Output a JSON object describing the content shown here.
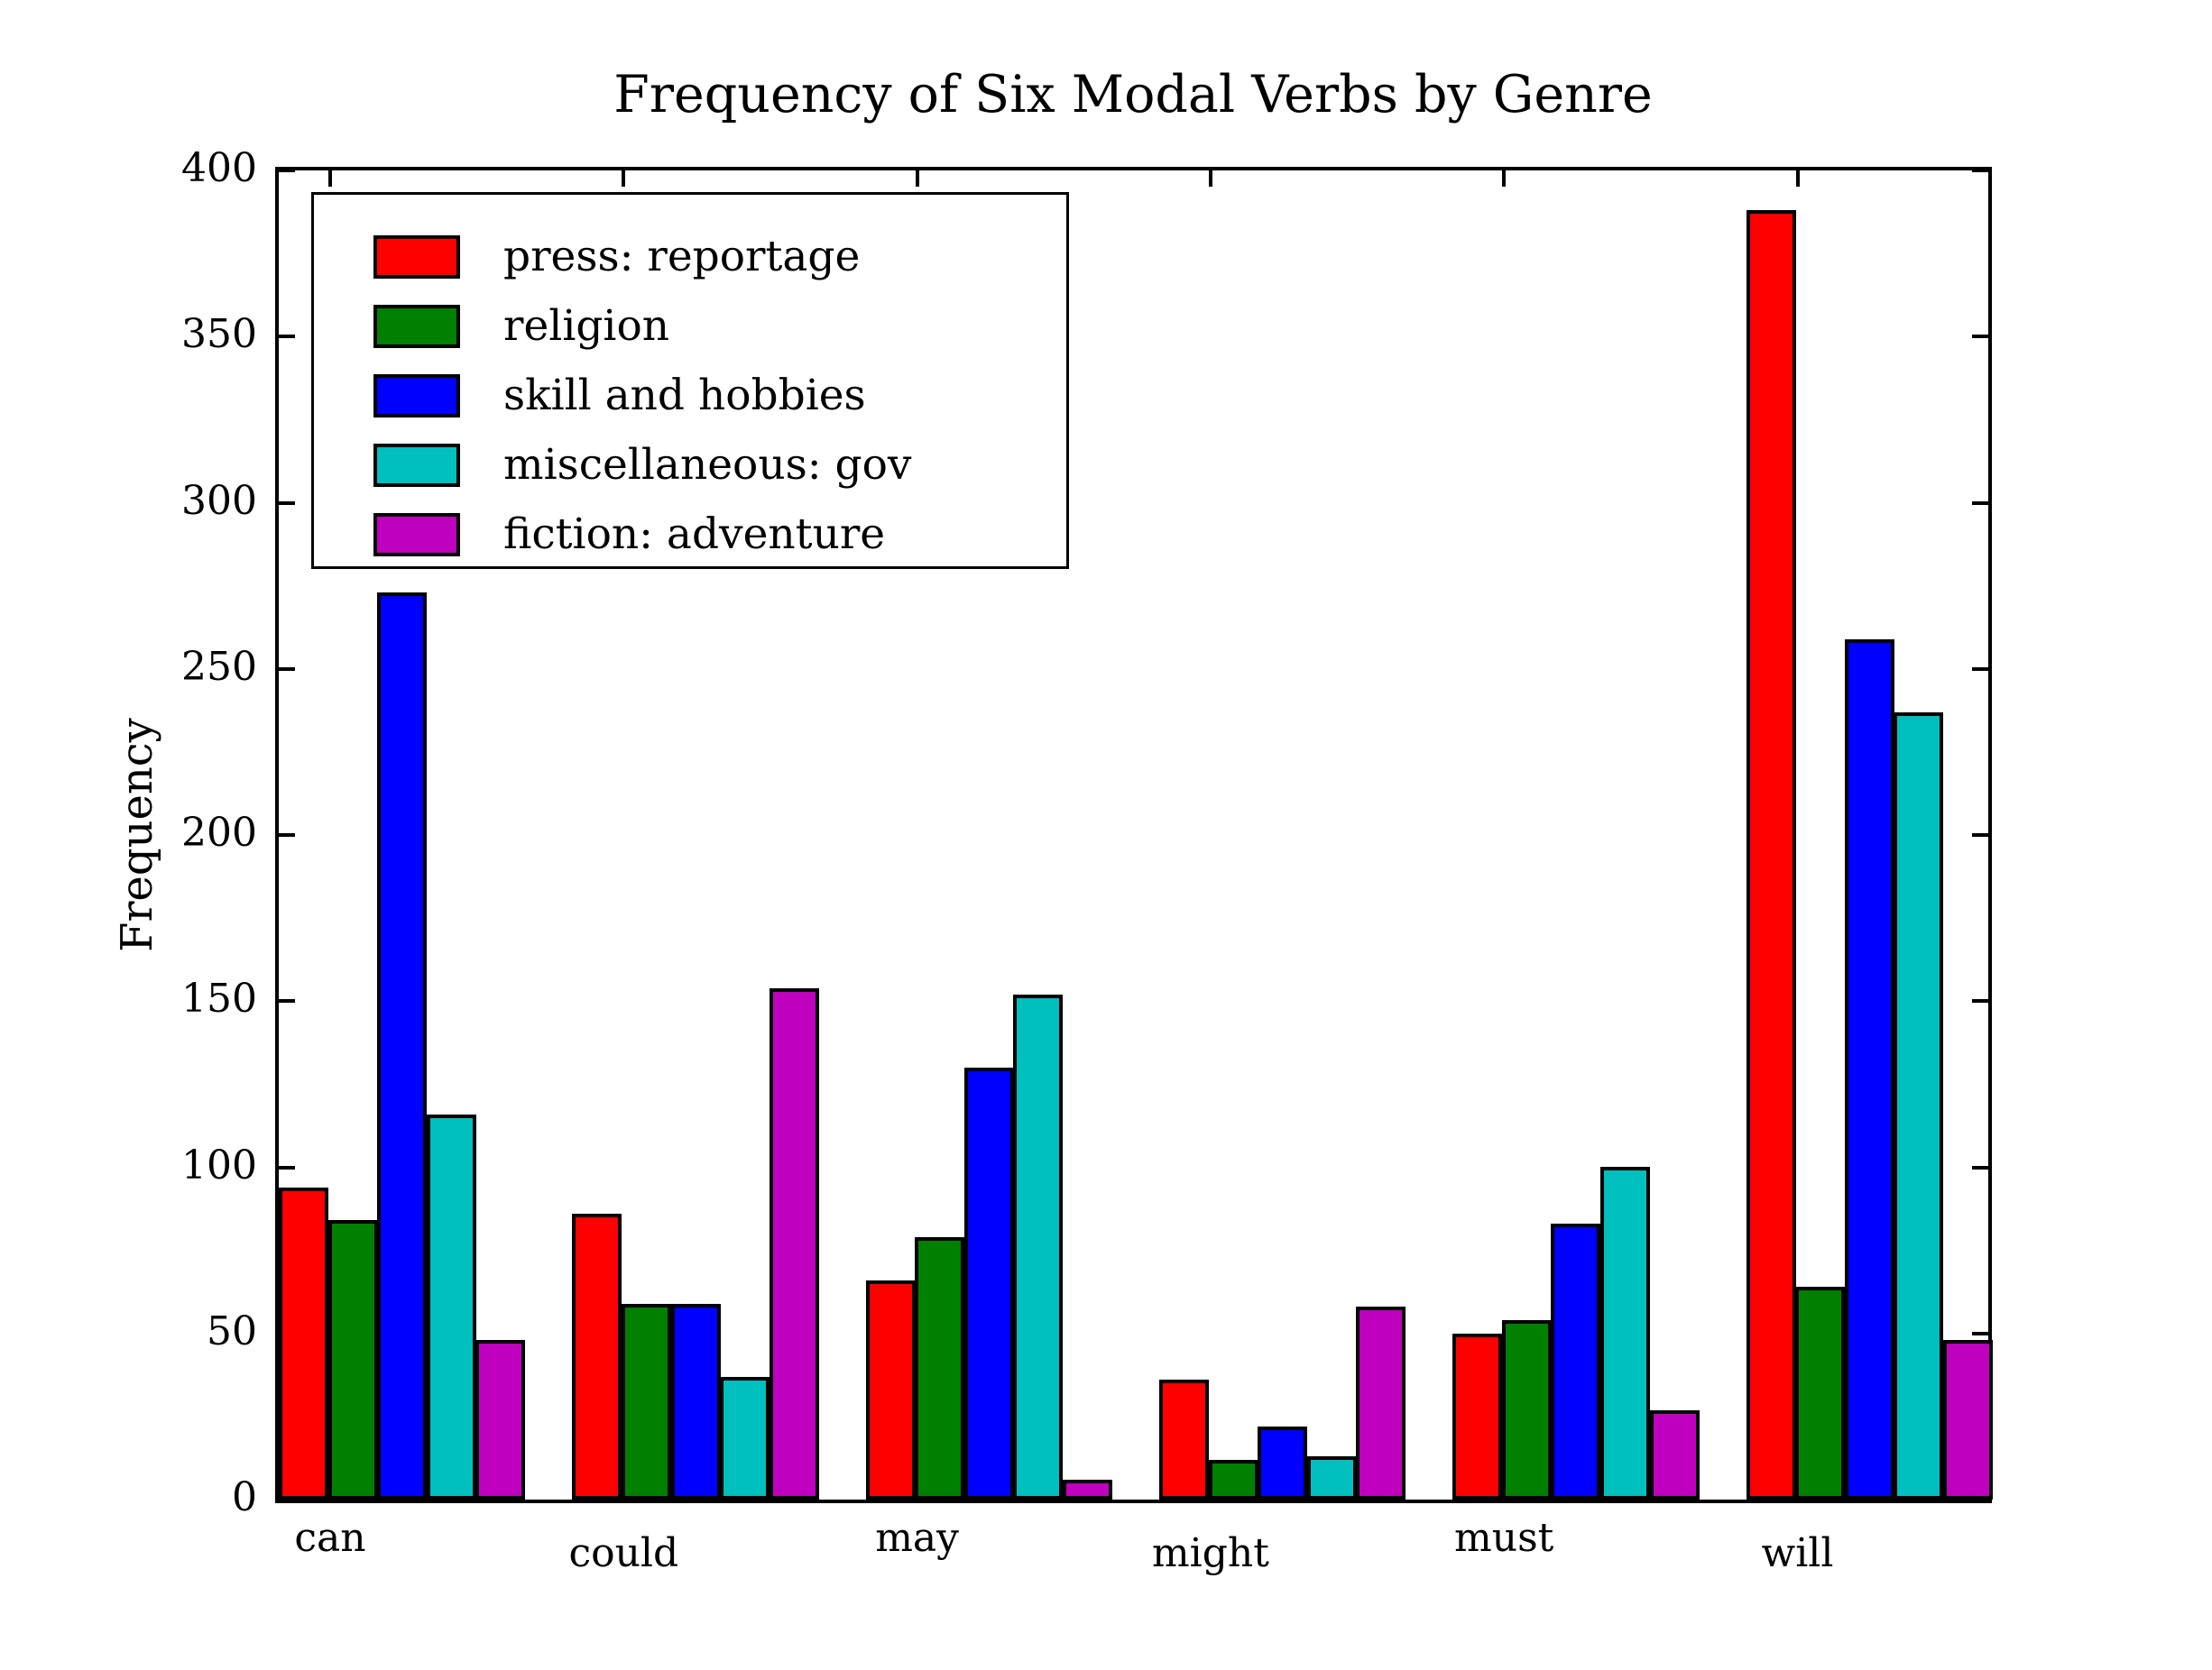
{
  "title": "Frequency of Six Modal Verbs by Genre",
  "chart_data": {
    "type": "bar",
    "title": "Frequency of Six Modal Verbs by Genre",
    "xlabel": "",
    "ylabel": "Frequency",
    "categories": [
      "can",
      "could",
      "may",
      "might",
      "must",
      "will"
    ],
    "series": [
      {
        "name": "press: reportage",
        "color": "#ff0000",
        "values": [
          94,
          86,
          66,
          36,
          50,
          388
        ]
      },
      {
        "name": "religion",
        "color": "#008000",
        "values": [
          84,
          59,
          79,
          12,
          54,
          64
        ]
      },
      {
        "name": "skill and hobbies",
        "color": "#0000ff",
        "values": [
          273,
          59,
          130,
          22,
          83,
          259
        ]
      },
      {
        "name": "miscellaneous: gov",
        "color": "#00bfbf",
        "values": [
          116,
          37,
          152,
          13,
          100,
          237
        ]
      },
      {
        "name": "fiction: adventure",
        "color": "#bf00bf",
        "values": [
          48,
          154,
          6,
          58,
          27,
          48
        ]
      }
    ],
    "ylim": [
      0,
      400
    ],
    "yticks": [
      0,
      50,
      100,
      150,
      200,
      250,
      300,
      350,
      400
    ],
    "grid": false,
    "legend_position": "upper left",
    "bar_edge_color": "#000000",
    "background_color": "#ffffff"
  }
}
